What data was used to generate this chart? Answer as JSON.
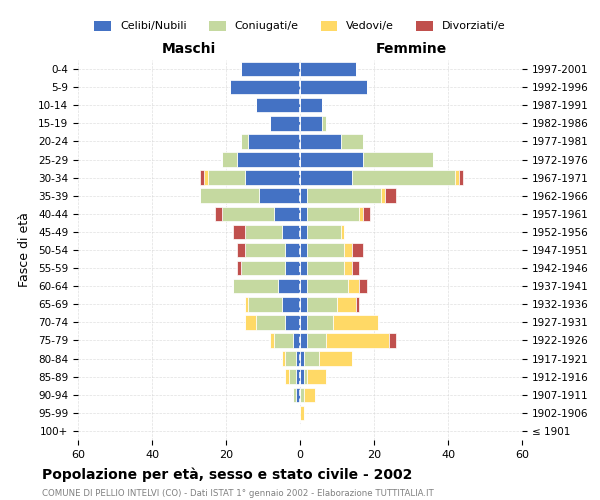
{
  "age_groups": [
    "100+",
    "95-99",
    "90-94",
    "85-89",
    "80-84",
    "75-79",
    "70-74",
    "65-69",
    "60-64",
    "55-59",
    "50-54",
    "45-49",
    "40-44",
    "35-39",
    "30-34",
    "25-29",
    "20-24",
    "15-19",
    "10-14",
    "5-9",
    "0-4"
  ],
  "birth_years": [
    "≤ 1901",
    "1902-1906",
    "1907-1911",
    "1912-1916",
    "1917-1921",
    "1922-1926",
    "1927-1931",
    "1932-1936",
    "1937-1941",
    "1942-1946",
    "1947-1951",
    "1952-1956",
    "1957-1961",
    "1962-1966",
    "1967-1971",
    "1972-1976",
    "1977-1981",
    "1982-1986",
    "1987-1991",
    "1992-1996",
    "1997-2001"
  ],
  "maschi": {
    "celibi": [
      0,
      0,
      1,
      1,
      1,
      2,
      4,
      5,
      6,
      4,
      4,
      5,
      7,
      11,
      15,
      17,
      14,
      8,
      12,
      19,
      16
    ],
    "coniugati": [
      0,
      0,
      1,
      2,
      3,
      5,
      8,
      9,
      12,
      12,
      11,
      10,
      14,
      16,
      10,
      4,
      2,
      0,
      0,
      0,
      0
    ],
    "vedovi": [
      0,
      0,
      0,
      1,
      1,
      1,
      3,
      1,
      0,
      0,
      0,
      0,
      0,
      0,
      1,
      0,
      0,
      0,
      0,
      0,
      0
    ],
    "divorziati": [
      0,
      0,
      0,
      0,
      0,
      0,
      0,
      0,
      0,
      1,
      2,
      3,
      2,
      0,
      1,
      0,
      0,
      0,
      0,
      0,
      0
    ]
  },
  "femmine": {
    "nubili": [
      0,
      0,
      0,
      1,
      1,
      2,
      2,
      2,
      2,
      2,
      2,
      2,
      2,
      2,
      14,
      17,
      11,
      6,
      6,
      18,
      15
    ],
    "coniugate": [
      0,
      0,
      1,
      1,
      4,
      5,
      7,
      8,
      11,
      10,
      10,
      9,
      14,
      20,
      28,
      19,
      6,
      1,
      0,
      0,
      0
    ],
    "vedove": [
      0,
      1,
      3,
      5,
      9,
      17,
      12,
      5,
      3,
      2,
      2,
      1,
      1,
      1,
      1,
      0,
      0,
      0,
      0,
      0,
      0
    ],
    "divorziate": [
      0,
      0,
      0,
      0,
      0,
      2,
      0,
      1,
      2,
      2,
      3,
      0,
      2,
      3,
      1,
      0,
      0,
      0,
      0,
      0,
      0
    ]
  },
  "color_celibi": "#4472c4",
  "color_coniugati": "#c5d9a0",
  "color_vedovi": "#ffd966",
  "color_divorziati": "#c0504d",
  "xlim": 60,
  "title": "Popolazione per età, sesso e stato civile - 2002",
  "subtitle": "COMUNE DI PELLIO INTELVI (CO) - Dati ISTAT 1° gennaio 2002 - Elaborazione TUTTITALIA.IT",
  "ylabel": "Fasce di età",
  "label_maschi": "Maschi",
  "label_femmine": "Femmine",
  "legend_celibi": "Celibi/Nubili",
  "legend_coniugati": "Coniugati/e",
  "legend_vedovi": "Vedovi/e",
  "legend_divorziati": "Divorziati/e"
}
